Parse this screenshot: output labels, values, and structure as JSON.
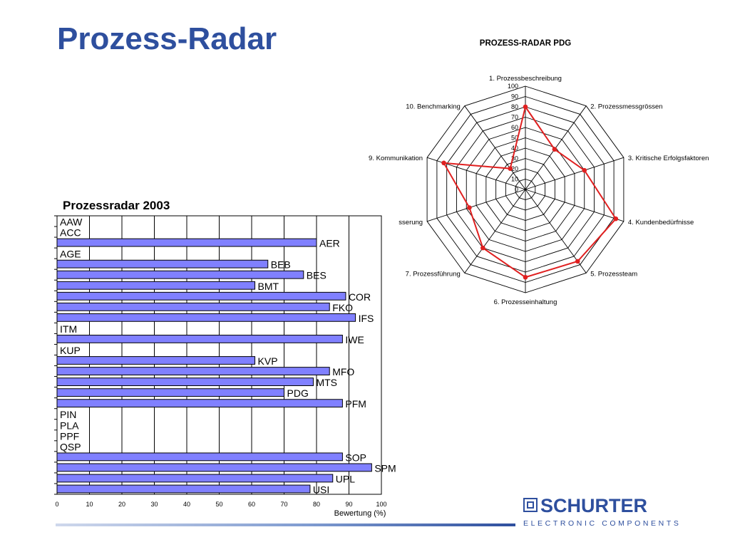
{
  "slide": {
    "title": "Prozess-Radar"
  },
  "brand": {
    "name": "SCHURTER",
    "tagline": "ELECTRONIC COMPONENTS",
    "color": "#2e4f9e"
  },
  "chart_data": [
    {
      "type": "bar",
      "orientation": "horizontal",
      "title": "Prozessradar 2003",
      "xlabel": "Bewertung (%)",
      "ylabel": "",
      "xlim": [
        0,
        100
      ],
      "xticks": [
        "0",
        "10",
        "20",
        "30",
        "40",
        "50",
        "60",
        "70",
        "80",
        "90",
        "100"
      ],
      "grid": true,
      "bar_color": "#8080ff",
      "categories": [
        "AAW",
        "ACC",
        "AER",
        "AGE",
        "BEB",
        "BES",
        "BMT",
        "COR",
        "FKO",
        "IFS",
        "ITM",
        "IWE",
        "KUP",
        "KVP",
        "MFO",
        "MTS",
        "PDG",
        "PFM",
        "PIN",
        "PLA",
        "PPF",
        "QSP",
        "SOP",
        "SPM",
        "UPL",
        "USI"
      ],
      "values": [
        0,
        0,
        80,
        0,
        65,
        76,
        61,
        89,
        84,
        92,
        0,
        88,
        0,
        61,
        84,
        79,
        70,
        88,
        0,
        0,
        0,
        0,
        88,
        97,
        85,
        78
      ]
    },
    {
      "type": "radar",
      "title": "PROZESS-RADAR PDG",
      "rlim": [
        0,
        100
      ],
      "rticks": [
        "0",
        "10",
        "20",
        "30",
        "40",
        "50",
        "60",
        "70",
        "80",
        "90",
        "100"
      ],
      "line_color": "#e02020",
      "categories": [
        "1. Prozessbeschreibung",
        "2. Prozessmessgrössen",
        "3. Kritische Erfolgsfaktoren",
        "4. Kundenbedürfnisse",
        "5. Prozessteam",
        "6. Prozesseinhaltung",
        "7. Prozessführung",
        "sserung",
        "9. Kommunikation",
        "10. Benchmarking"
      ],
      "values": [
        80,
        48,
        60,
        92,
        86,
        85,
        70,
        57,
        83,
        25
      ]
    }
  ]
}
